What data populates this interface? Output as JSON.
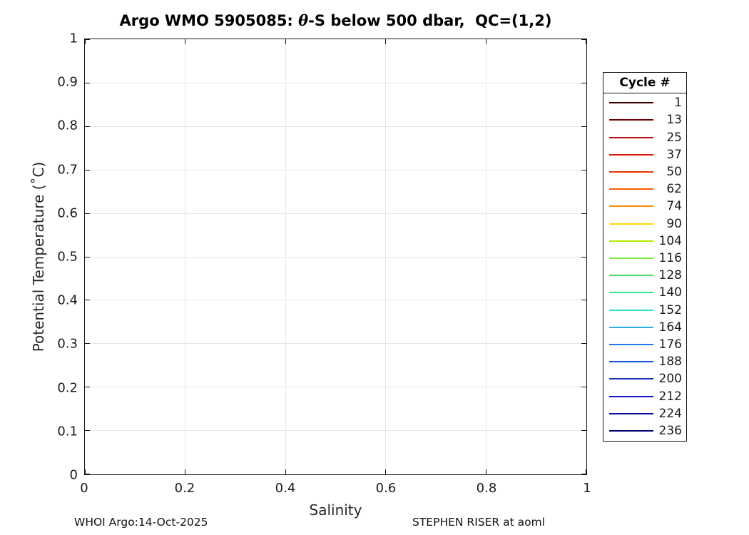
{
  "figure": {
    "title": {
      "prefix": "Argo WMO 5905085: ",
      "theta": "θ",
      "suffix": "-S below 500 dbar,  QC=(1,2)"
    },
    "footer_left": "WHOI Argo:14-Oct-2025",
    "footer_right": "STEPHEN RISER at aoml"
  },
  "axes": {
    "x": {
      "label": "Salinity",
      "min": 0,
      "max": 1,
      "ticks": [
        {
          "label": "0",
          "value": 0
        },
        {
          "label": "0.2",
          "value": 0.2
        },
        {
          "label": "0.4",
          "value": 0.4
        },
        {
          "label": "0.6",
          "value": 0.6
        },
        {
          "label": "0.8",
          "value": 0.8
        },
        {
          "label": "1",
          "value": 1
        }
      ]
    },
    "y": {
      "label": "Potential Temperature (˚C)",
      "min": 0,
      "max": 1,
      "ticks": [
        {
          "label": "0",
          "value": 0
        },
        {
          "label": "0.1",
          "value": 0.1
        },
        {
          "label": "0.2",
          "value": 0.2
        },
        {
          "label": "0.3",
          "value": 0.3
        },
        {
          "label": "0.4",
          "value": 0.4
        },
        {
          "label": "0.5",
          "value": 0.5
        },
        {
          "label": "0.6",
          "value": 0.6
        },
        {
          "label": "0.7",
          "value": 0.7
        },
        {
          "label": "0.8",
          "value": 0.8
        },
        {
          "label": "0.9",
          "value": 0.9
        },
        {
          "label": "1",
          "value": 1
        }
      ]
    }
  },
  "legend": {
    "title": "Cycle #",
    "entries": [
      {
        "label": "1",
        "color": "#400000"
      },
      {
        "label": "13",
        "color": "#700000"
      },
      {
        "label": "25",
        "color": "#c40c0c"
      },
      {
        "label": "37",
        "color": "#e11400"
      },
      {
        "label": "50",
        "color": "#f13500"
      },
      {
        "label": "62",
        "color": "#fa5e00"
      },
      {
        "label": "74",
        "color": "#fb8c00"
      },
      {
        "label": "90",
        "color": "#ffd700"
      },
      {
        "label": "104",
        "color": "#b5e800"
      },
      {
        "label": "116",
        "color": "#7ce83d"
      },
      {
        "label": "128",
        "color": "#4adc62"
      },
      {
        "label": "140",
        "color": "#2ee593"
      },
      {
        "label": "152",
        "color": "#27e2cf"
      },
      {
        "label": "164",
        "color": "#29adf0"
      },
      {
        "label": "176",
        "color": "#1c7cf0"
      },
      {
        "label": "188",
        "color": "#1854d6"
      },
      {
        "label": "200",
        "color": "#1634bd"
      },
      {
        "label": "212",
        "color": "#121bca"
      },
      {
        "label": "224",
        "color": "#0909a0"
      },
      {
        "label": "236",
        "color": "#010175"
      }
    ]
  },
  "colors": {
    "axis": "#151515",
    "grid": "#e6e6e6",
    "tick_text": "#1a1a1a",
    "background": "#ffffff"
  },
  "chart_data": {
    "type": "line",
    "title": "Argo WMO 5905085: θ-S below 500 dbar,  QC=(1,2)",
    "xlabel": "Salinity",
    "ylabel": "Potential Temperature (˚C)",
    "xlim": [
      0,
      1
    ],
    "ylim": [
      0,
      1
    ],
    "x_ticks": [
      0,
      0.2,
      0.4,
      0.6,
      0.8,
      1
    ],
    "y_ticks": [
      0,
      0.1,
      0.2,
      0.3,
      0.4,
      0.5,
      0.6,
      0.7,
      0.8,
      0.9,
      1
    ],
    "grid": true,
    "legend_position": "outside-right",
    "legend_title": "Cycle #",
    "series": [
      {
        "name": "1",
        "color": "#400000",
        "values": []
      },
      {
        "name": "13",
        "color": "#700000",
        "values": []
      },
      {
        "name": "25",
        "color": "#c40c0c",
        "values": []
      },
      {
        "name": "37",
        "color": "#e11400",
        "values": []
      },
      {
        "name": "50",
        "color": "#f13500",
        "values": []
      },
      {
        "name": "62",
        "color": "#fa5e00",
        "values": []
      },
      {
        "name": "74",
        "color": "#fb8c00",
        "values": []
      },
      {
        "name": "90",
        "color": "#ffd700",
        "values": []
      },
      {
        "name": "104",
        "color": "#b5e800",
        "values": []
      },
      {
        "name": "116",
        "color": "#7ce83d",
        "values": []
      },
      {
        "name": "128",
        "color": "#4adc62",
        "values": []
      },
      {
        "name": "140",
        "color": "#2ee593",
        "values": []
      },
      {
        "name": "152",
        "color": "#27e2cf",
        "values": []
      },
      {
        "name": "164",
        "color": "#29adf0",
        "values": []
      },
      {
        "name": "176",
        "color": "#1c7cf0",
        "values": []
      },
      {
        "name": "188",
        "color": "#1854d6",
        "values": []
      },
      {
        "name": "200",
        "color": "#1634bd",
        "values": []
      },
      {
        "name": "212",
        "color": "#121bca",
        "values": []
      },
      {
        "name": "224",
        "color": "#0909a0",
        "values": []
      },
      {
        "name": "236",
        "color": "#010175",
        "values": []
      }
    ],
    "note": "Plot region is empty; no data curves are drawn inside the axes in this screenshot."
  }
}
